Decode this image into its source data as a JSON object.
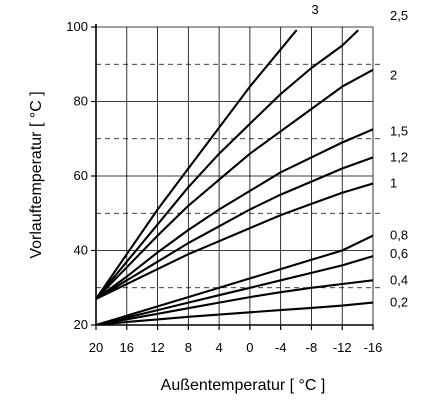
{
  "chart_data": {
    "type": "line",
    "title": "",
    "xlabel": "Außentemperatur [ °C ]",
    "ylabel": "Vorlauftemperatur [ °C ]",
    "x_ticks": [
      "20",
      "16",
      "12",
      "8",
      "4",
      "0",
      "-4",
      "-8",
      "-12",
      "-16"
    ],
    "y_ticks": [
      "20",
      "40",
      "60",
      "80",
      "100"
    ],
    "xlim": [
      20,
      -16
    ],
    "ylim": [
      20,
      100
    ],
    "dashed_reference_lines": [
      30,
      50,
      70,
      90
    ],
    "grid": true,
    "colors": {
      "curve": "#000000",
      "grid": "#000000"
    },
    "series": [
      {
        "name": "3",
        "label_y": 104.0,
        "x": [
          20,
          16,
          12,
          8,
          4,
          0,
          -4,
          -6
        ],
        "values": [
          27,
          39,
          51,
          62,
          73,
          84,
          94,
          99
        ]
      },
      {
        "name": "2,5",
        "label_y": 102.0,
        "x": [
          20,
          16,
          12,
          8,
          4,
          0,
          -4,
          -8,
          -12,
          -14
        ],
        "values": [
          27,
          37,
          47,
          57,
          66,
          74,
          82,
          89,
          95,
          99
        ]
      },
      {
        "name": "2",
        "label_y": 87.0,
        "x": [
          20,
          16,
          12,
          8,
          4,
          0,
          -4,
          -8,
          -12,
          -16
        ],
        "values": [
          27,
          35.5,
          44,
          52,
          59,
          66,
          72,
          78,
          84,
          88.5
        ]
      },
      {
        "name": "1,5",
        "label_y": 72.0,
        "x": [
          20,
          16,
          12,
          8,
          4,
          0,
          -4,
          -8,
          -12,
          -16
        ],
        "values": [
          27,
          33,
          39.5,
          45.5,
          51,
          56,
          61,
          65,
          69,
          72.5
        ]
      },
      {
        "name": "1,2",
        "label_y": 65.0,
        "x": [
          20,
          16,
          12,
          8,
          4,
          0,
          -4,
          -8,
          -12,
          -16
        ],
        "values": [
          27,
          32,
          37,
          42,
          46.5,
          51,
          55,
          58.5,
          62,
          65
        ]
      },
      {
        "name": "1",
        "label_y": 58.0,
        "x": [
          20,
          16,
          12,
          8,
          4,
          0,
          -4,
          -8,
          -12,
          -16
        ],
        "values": [
          27,
          31,
          35,
          39,
          42.5,
          46,
          49.5,
          52.5,
          55.5,
          58
        ]
      },
      {
        "name": "0,8",
        "label_y": 44.0,
        "x": [
          20,
          16,
          12,
          8,
          4,
          0,
          -4,
          -8,
          -12,
          -16
        ],
        "values": [
          20,
          22.5,
          25,
          27.5,
          30,
          32.5,
          35,
          37.5,
          40,
          44
        ]
      },
      {
        "name": "0,6",
        "label_y": 39.0,
        "x": [
          20,
          16,
          12,
          8,
          4,
          0,
          -4,
          -8,
          -12,
          -16
        ],
        "values": [
          20,
          22,
          24,
          26,
          28,
          30,
          32,
          34,
          36,
          38.5
        ]
      },
      {
        "name": "0,4",
        "label_y": 32.0,
        "x": [
          20,
          16,
          12,
          8,
          4,
          0,
          -4,
          -8,
          -12,
          -16
        ],
        "values": [
          20,
          21.5,
          23,
          24.5,
          26,
          27.5,
          28.8,
          30,
          31,
          32
        ]
      },
      {
        "name": "0,2",
        "label_y": 26.0,
        "x": [
          20,
          16,
          12,
          8,
          4,
          0,
          -4,
          -8,
          -12,
          -16
        ],
        "values": [
          20,
          20.8,
          21.5,
          22.2,
          22.8,
          23.4,
          24,
          24.6,
          25.2,
          26
        ]
      }
    ]
  }
}
